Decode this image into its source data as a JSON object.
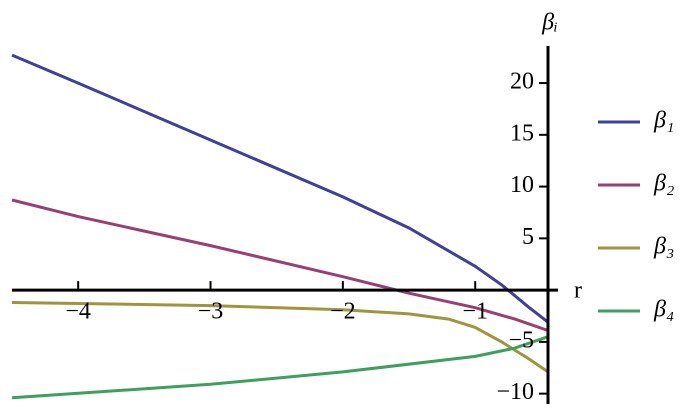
{
  "chart_data": {
    "type": "line",
    "x_label": "r",
    "y_label": "βᵢ",
    "xlim": [
      -4.5,
      -0.45
    ],
    "ylim": [
      -11,
      23
    ],
    "xticks": [
      {
        "value": -4,
        "label": "−4"
      },
      {
        "value": -3,
        "label": "−3"
      },
      {
        "value": -2,
        "label": "−2"
      },
      {
        "value": -1,
        "label": "−1"
      }
    ],
    "yticks": [
      {
        "value": -10,
        "label": "−10"
      },
      {
        "value": -5,
        "label": "−5"
      },
      5,
      10,
      15,
      20
    ],
    "legend": "right",
    "series": [
      {
        "name": "β₁",
        "color": "#40409a",
        "x": [
          -4.5,
          -4,
          -3,
          -2,
          -1.5,
          -1,
          -0.8,
          -0.6,
          -0.45
        ],
        "values": [
          22.7,
          20,
          14.5,
          9.0,
          6.0,
          2.3,
          0.5,
          -1.6,
          -3.1
        ]
      },
      {
        "name": "β₂",
        "color": "#993f72",
        "x": [
          -4.5,
          -4,
          -3,
          -2,
          -1.5,
          -1,
          -0.7,
          -0.45
        ],
        "values": [
          8.7,
          7.1,
          4.3,
          1.3,
          -0.3,
          -1.7,
          -2.8,
          -3.9
        ]
      },
      {
        "name": "β₃",
        "color": "#a0953f",
        "x": [
          -4.5,
          -3,
          -2,
          -1.5,
          -1.2,
          -1,
          -0.8,
          -0.6,
          -0.45
        ],
        "values": [
          -1.2,
          -1.5,
          -1.9,
          -2.3,
          -2.8,
          -3.6,
          -5.0,
          -6.6,
          -7.9
        ]
      },
      {
        "name": "β₄",
        "color": "#3f9f5f",
        "x": [
          -4.5,
          -3,
          -2,
          -1,
          -0.7,
          -0.45
        ],
        "values": [
          -10.4,
          -9.1,
          -7.9,
          -6.4,
          -5.6,
          -4.5
        ]
      }
    ]
  }
}
